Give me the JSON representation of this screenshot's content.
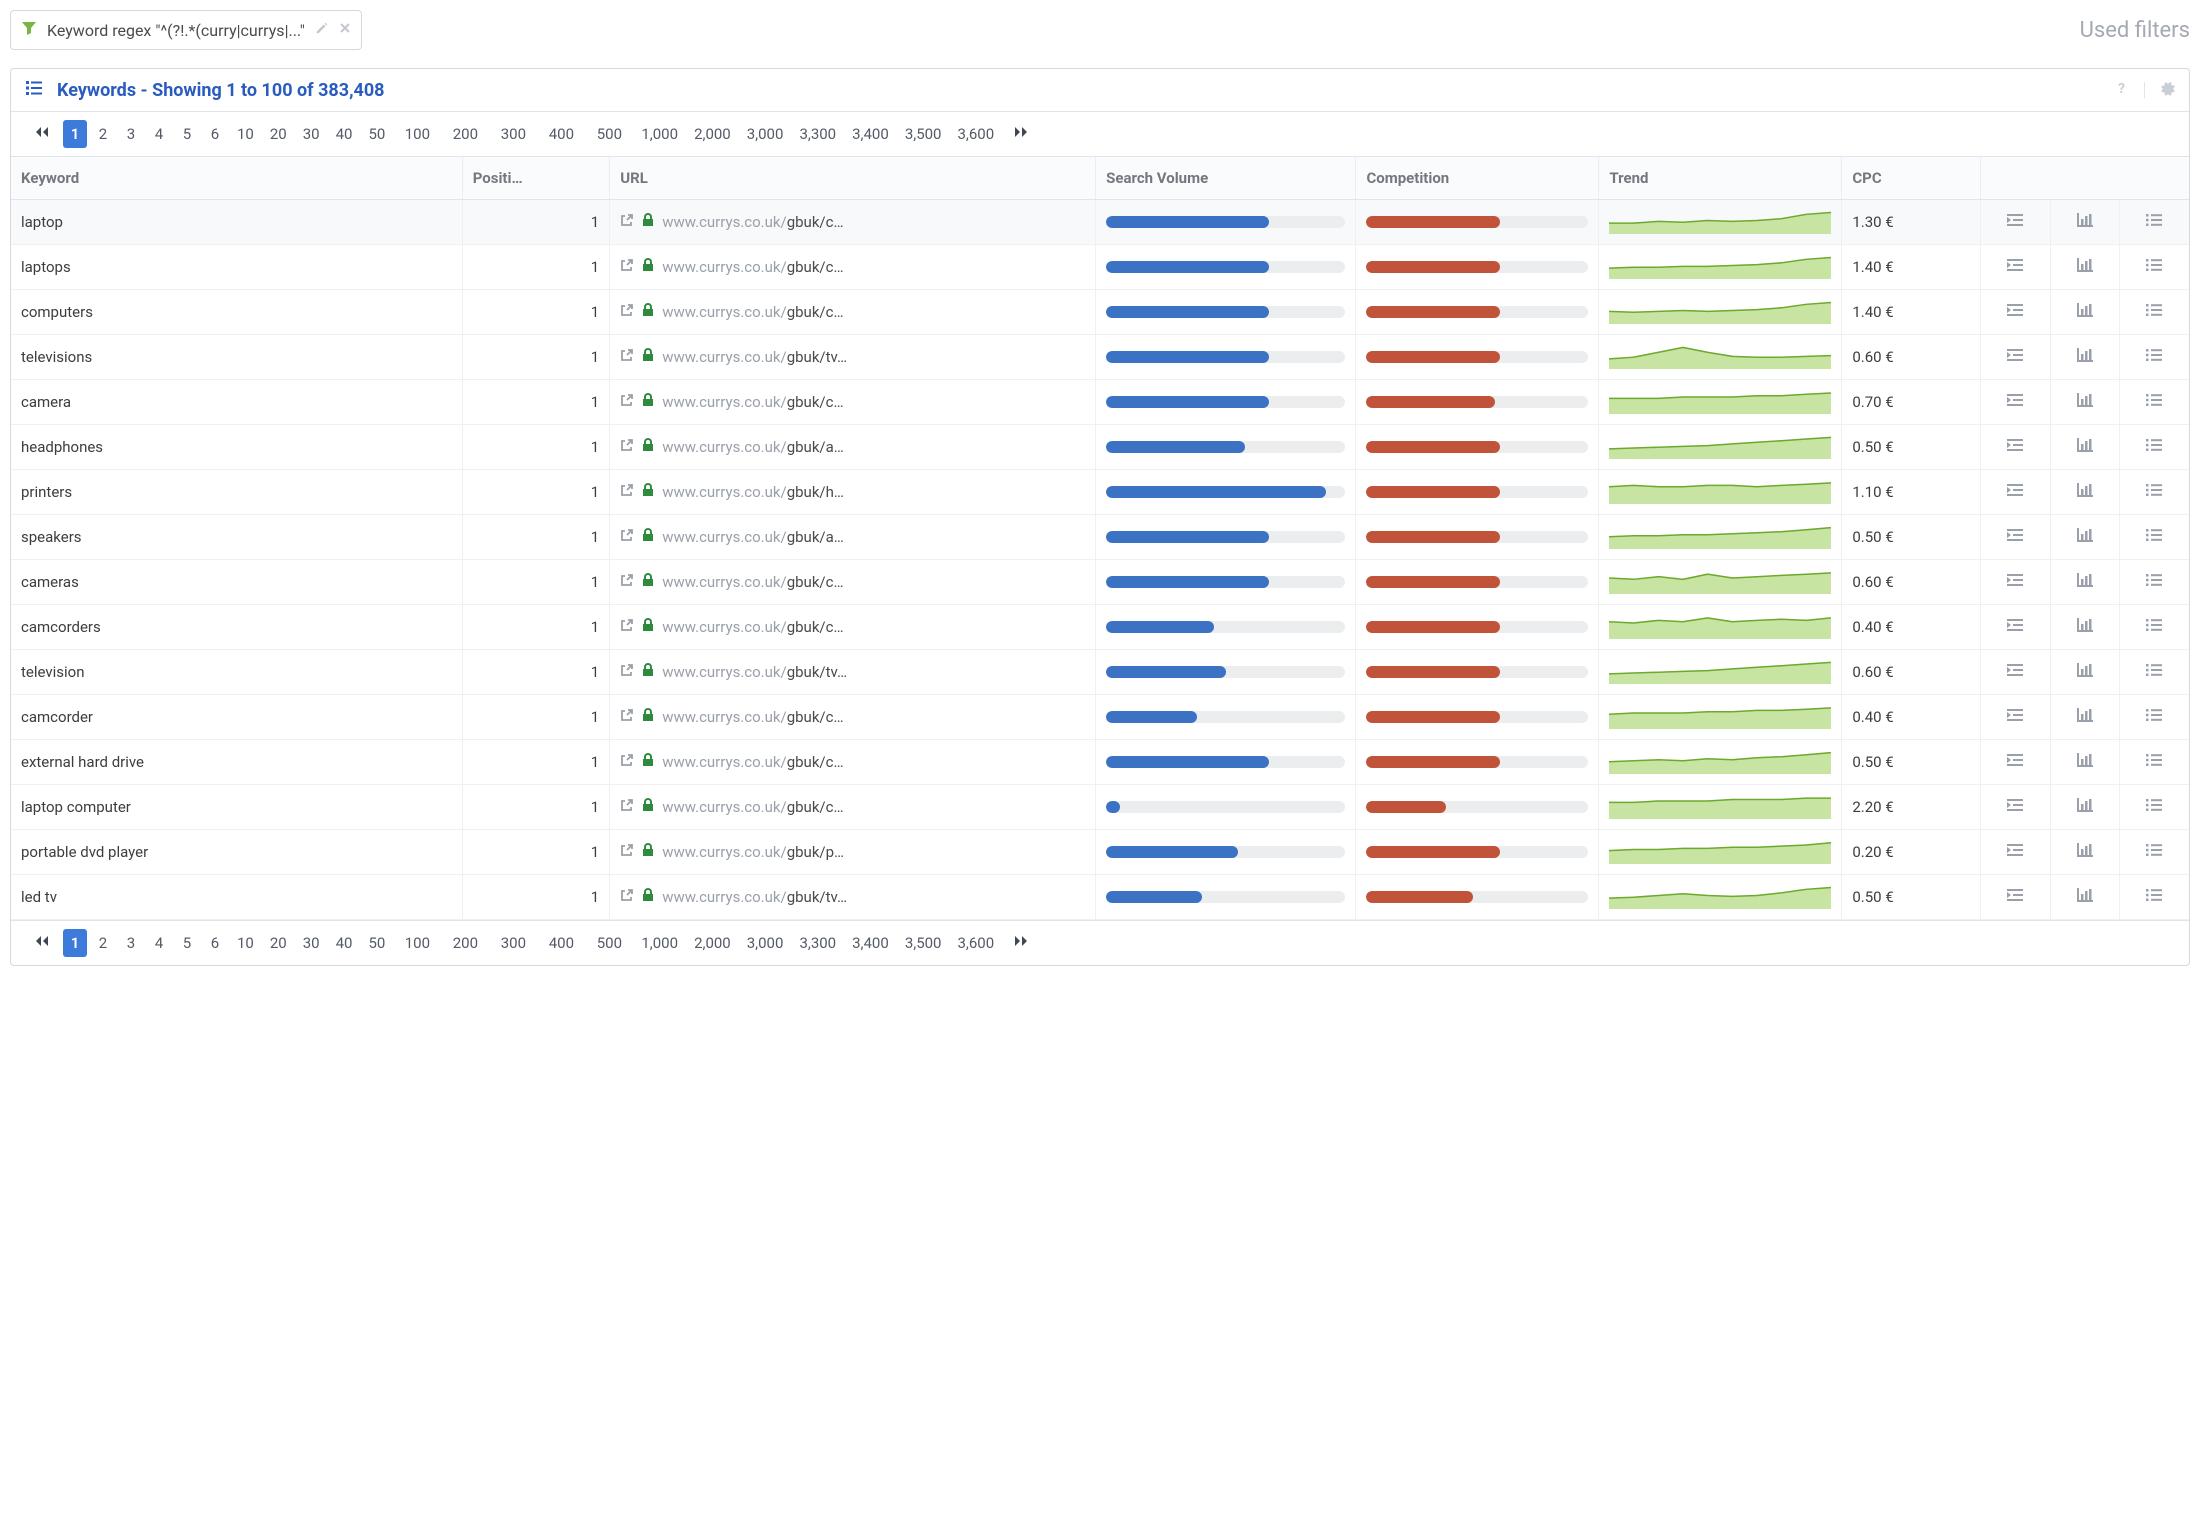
{
  "filter": {
    "text": "Keyword regex \"^(?!.*(curry|currys|...\"",
    "used_filters_label": "Used filters"
  },
  "panel": {
    "title": "Keywords - Showing 1 to 100 of 383,408"
  },
  "pager": {
    "pages": [
      "1",
      "2",
      "3",
      "4",
      "5",
      "6",
      "10",
      "20",
      "30",
      "40",
      "50",
      "100",
      "200",
      "300",
      "400",
      "500",
      "1,000",
      "2,000",
      "3,000",
      "3,300",
      "3,400",
      "3,500",
      "3,600"
    ],
    "active_index": 0
  },
  "columns": {
    "keyword": "Keyword",
    "position": "Positi…",
    "url": "URL",
    "search_volume": "Search Volume",
    "competition": "Competition",
    "trend": "Trend",
    "cpc": "CPC"
  },
  "colors": {
    "bar_bg": "#ebedef",
    "bar_blue": "#3b72c4",
    "bar_red": "#c0533a",
    "spark_fill": "#c7e4a3",
    "spark_line": "#6fa82e",
    "header_text": "#73787f",
    "link_gray": "#9aa0a9",
    "lock_green": "#2e8b3d",
    "accent_blue": "#3c7bd9",
    "title_blue": "#2a5cbf"
  },
  "rows": [
    {
      "keyword": "laptop",
      "position": "1",
      "url_gray": "www.currys.co.uk/",
      "url_dark": "gbuk/c…",
      "sv": 68,
      "comp": 60,
      "cpc": "1.30 €",
      "trend": [
        10,
        10,
        12,
        11,
        13,
        12,
        13,
        15,
        20,
        22
      ]
    },
    {
      "keyword": "laptops",
      "position": "1",
      "url_gray": "www.currys.co.uk/",
      "url_dark": "gbuk/c…",
      "sv": 68,
      "comp": 60,
      "cpc": "1.40 €",
      "trend": [
        10,
        11,
        11,
        12,
        12,
        13,
        14,
        16,
        20,
        22
      ]
    },
    {
      "keyword": "computers",
      "position": "1",
      "url_gray": "www.currys.co.uk/",
      "url_dark": "gbuk/c…",
      "sv": 68,
      "comp": 60,
      "cpc": "1.40 €",
      "trend": [
        12,
        11,
        12,
        13,
        12,
        13,
        14,
        16,
        20,
        22
      ]
    },
    {
      "keyword": "televisions",
      "position": "1",
      "url_gray": "www.currys.co.uk/",
      "url_dark": "gbuk/tv…",
      "sv": 68,
      "comp": 60,
      "cpc": "0.60 €",
      "trend": [
        10,
        12,
        18,
        24,
        18,
        13,
        12,
        12,
        13,
        14
      ]
    },
    {
      "keyword": "camera",
      "position": "1",
      "url_gray": "www.currys.co.uk/",
      "url_dark": "gbuk/c…",
      "sv": 68,
      "comp": 58,
      "cpc": "0.70 €",
      "trend": [
        10,
        10,
        10,
        11,
        11,
        11,
        12,
        12,
        13,
        14
      ]
    },
    {
      "keyword": "headphones",
      "position": "1",
      "url_gray": "www.currys.co.uk/",
      "url_dark": "gbuk/a…",
      "sv": 58,
      "comp": 60,
      "cpc": "0.50 €",
      "trend": [
        10,
        11,
        12,
        13,
        14,
        16,
        18,
        20,
        22,
        24
      ]
    },
    {
      "keyword": "printers",
      "position": "1",
      "url_gray": "www.currys.co.uk/",
      "url_dark": "gbuk/h…",
      "sv": 92,
      "comp": 60,
      "cpc": "1.10 €",
      "trend": [
        12,
        13,
        12,
        12,
        13,
        13,
        12,
        13,
        14,
        15
      ]
    },
    {
      "keyword": "speakers",
      "position": "1",
      "url_gray": "www.currys.co.uk/",
      "url_dark": "gbuk/a…",
      "sv": 68,
      "comp": 60,
      "cpc": "0.50 €",
      "trend": [
        10,
        11,
        11,
        12,
        12,
        13,
        14,
        15,
        17,
        19
      ]
    },
    {
      "keyword": "cameras",
      "position": "1",
      "url_gray": "www.currys.co.uk/",
      "url_dark": "gbuk/c…",
      "sv": 68,
      "comp": 60,
      "cpc": "0.60 €",
      "trend": [
        11,
        10,
        12,
        10,
        14,
        11,
        12,
        13,
        14,
        15
      ]
    },
    {
      "keyword": "camcorders",
      "position": "1",
      "url_gray": "www.currys.co.uk/",
      "url_dark": "gbuk/c…",
      "sv": 45,
      "comp": 60,
      "cpc": "0.40 €",
      "trend": [
        12,
        11,
        13,
        12,
        15,
        12,
        13,
        14,
        13,
        15
      ]
    },
    {
      "keyword": "television",
      "position": "1",
      "url_gray": "www.currys.co.uk/",
      "url_dark": "gbuk/tv…",
      "sv": 50,
      "comp": 60,
      "cpc": "0.60 €",
      "trend": [
        10,
        11,
        12,
        13,
        14,
        16,
        18,
        20,
        22,
        24
      ]
    },
    {
      "keyword": "camcorder",
      "position": "1",
      "url_gray": "www.currys.co.uk/",
      "url_dark": "gbuk/c…",
      "sv": 38,
      "comp": 60,
      "cpc": "0.40 €",
      "trend": [
        10,
        11,
        11,
        11,
        12,
        12,
        13,
        13,
        14,
        15
      ]
    },
    {
      "keyword": "external hard drive",
      "position": "1",
      "url_gray": "www.currys.co.uk/",
      "url_dark": "gbuk/c…",
      "sv": 68,
      "comp": 60,
      "cpc": "0.50 €",
      "trend": [
        10,
        11,
        12,
        11,
        13,
        12,
        14,
        15,
        17,
        19
      ]
    },
    {
      "keyword": "laptop computer",
      "position": "1",
      "url_gray": "www.currys.co.uk/",
      "url_dark": "gbuk/c…",
      "sv": 6,
      "comp": 36,
      "cpc": "2.20 €",
      "trend": [
        10,
        10,
        11,
        11,
        11,
        12,
        12,
        12,
        13,
        13
      ]
    },
    {
      "keyword": "portable dvd player",
      "position": "1",
      "url_gray": "www.currys.co.uk/",
      "url_dark": "gbuk/p…",
      "sv": 55,
      "comp": 60,
      "cpc": "0.20 €",
      "trend": [
        10,
        11,
        11,
        12,
        12,
        13,
        13,
        14,
        15,
        17
      ]
    },
    {
      "keyword": "led tv",
      "position": "1",
      "url_gray": "www.currys.co.uk/",
      "url_dark": "gbuk/tv…",
      "sv": 40,
      "comp": 48,
      "cpc": "0.50 €",
      "trend": [
        10,
        11,
        13,
        15,
        13,
        12,
        13,
        16,
        20,
        22
      ]
    }
  ],
  "icons": {
    "action1": "indent-icon",
    "action2": "chart-icon",
    "action3": "list-icon"
  }
}
